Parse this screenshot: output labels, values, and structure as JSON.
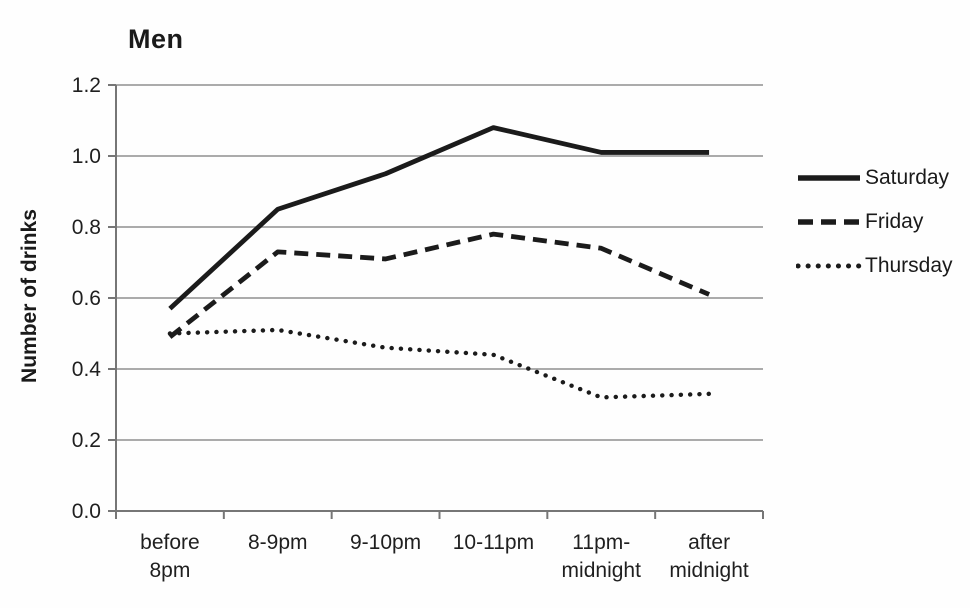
{
  "title": "Men",
  "chart_data": {
    "type": "line",
    "title": "Men",
    "xlabel": "",
    "ylabel": "Number of drinks",
    "ylim": [
      0,
      1.2
    ],
    "ytick_step": 0.2,
    "yticks": [
      "0.0",
      "0.2",
      "0.4",
      "0.6",
      "0.8",
      "1.0",
      "1.2"
    ],
    "grid": true,
    "grid_color": "#8f8f8f",
    "axis_color": "#767676",
    "line_color": "#1b1b1b",
    "legend_position": "right",
    "categories": [
      "before 8pm",
      "8-9pm",
      "9-10pm",
      "10-11pm",
      "11pm-midnight",
      "after midnight"
    ],
    "category_label_lines": [
      [
        "before",
        "8pm"
      ],
      [
        "8-9pm"
      ],
      [
        "9-10pm"
      ],
      [
        "10-11pm"
      ],
      [
        "11pm-",
        "midnight"
      ],
      [
        "after",
        "midnight"
      ]
    ],
    "series": [
      {
        "name": "Saturday",
        "style": "solid",
        "values": [
          0.57,
          0.85,
          0.95,
          1.08,
          1.01,
          1.01
        ]
      },
      {
        "name": "Friday",
        "style": "dashed",
        "values": [
          0.49,
          0.73,
          0.71,
          0.78,
          0.74,
          0.61
        ]
      },
      {
        "name": "Thursday",
        "style": "dotted",
        "values": [
          0.5,
          0.51,
          0.46,
          0.44,
          0.32,
          0.33
        ]
      }
    ]
  }
}
